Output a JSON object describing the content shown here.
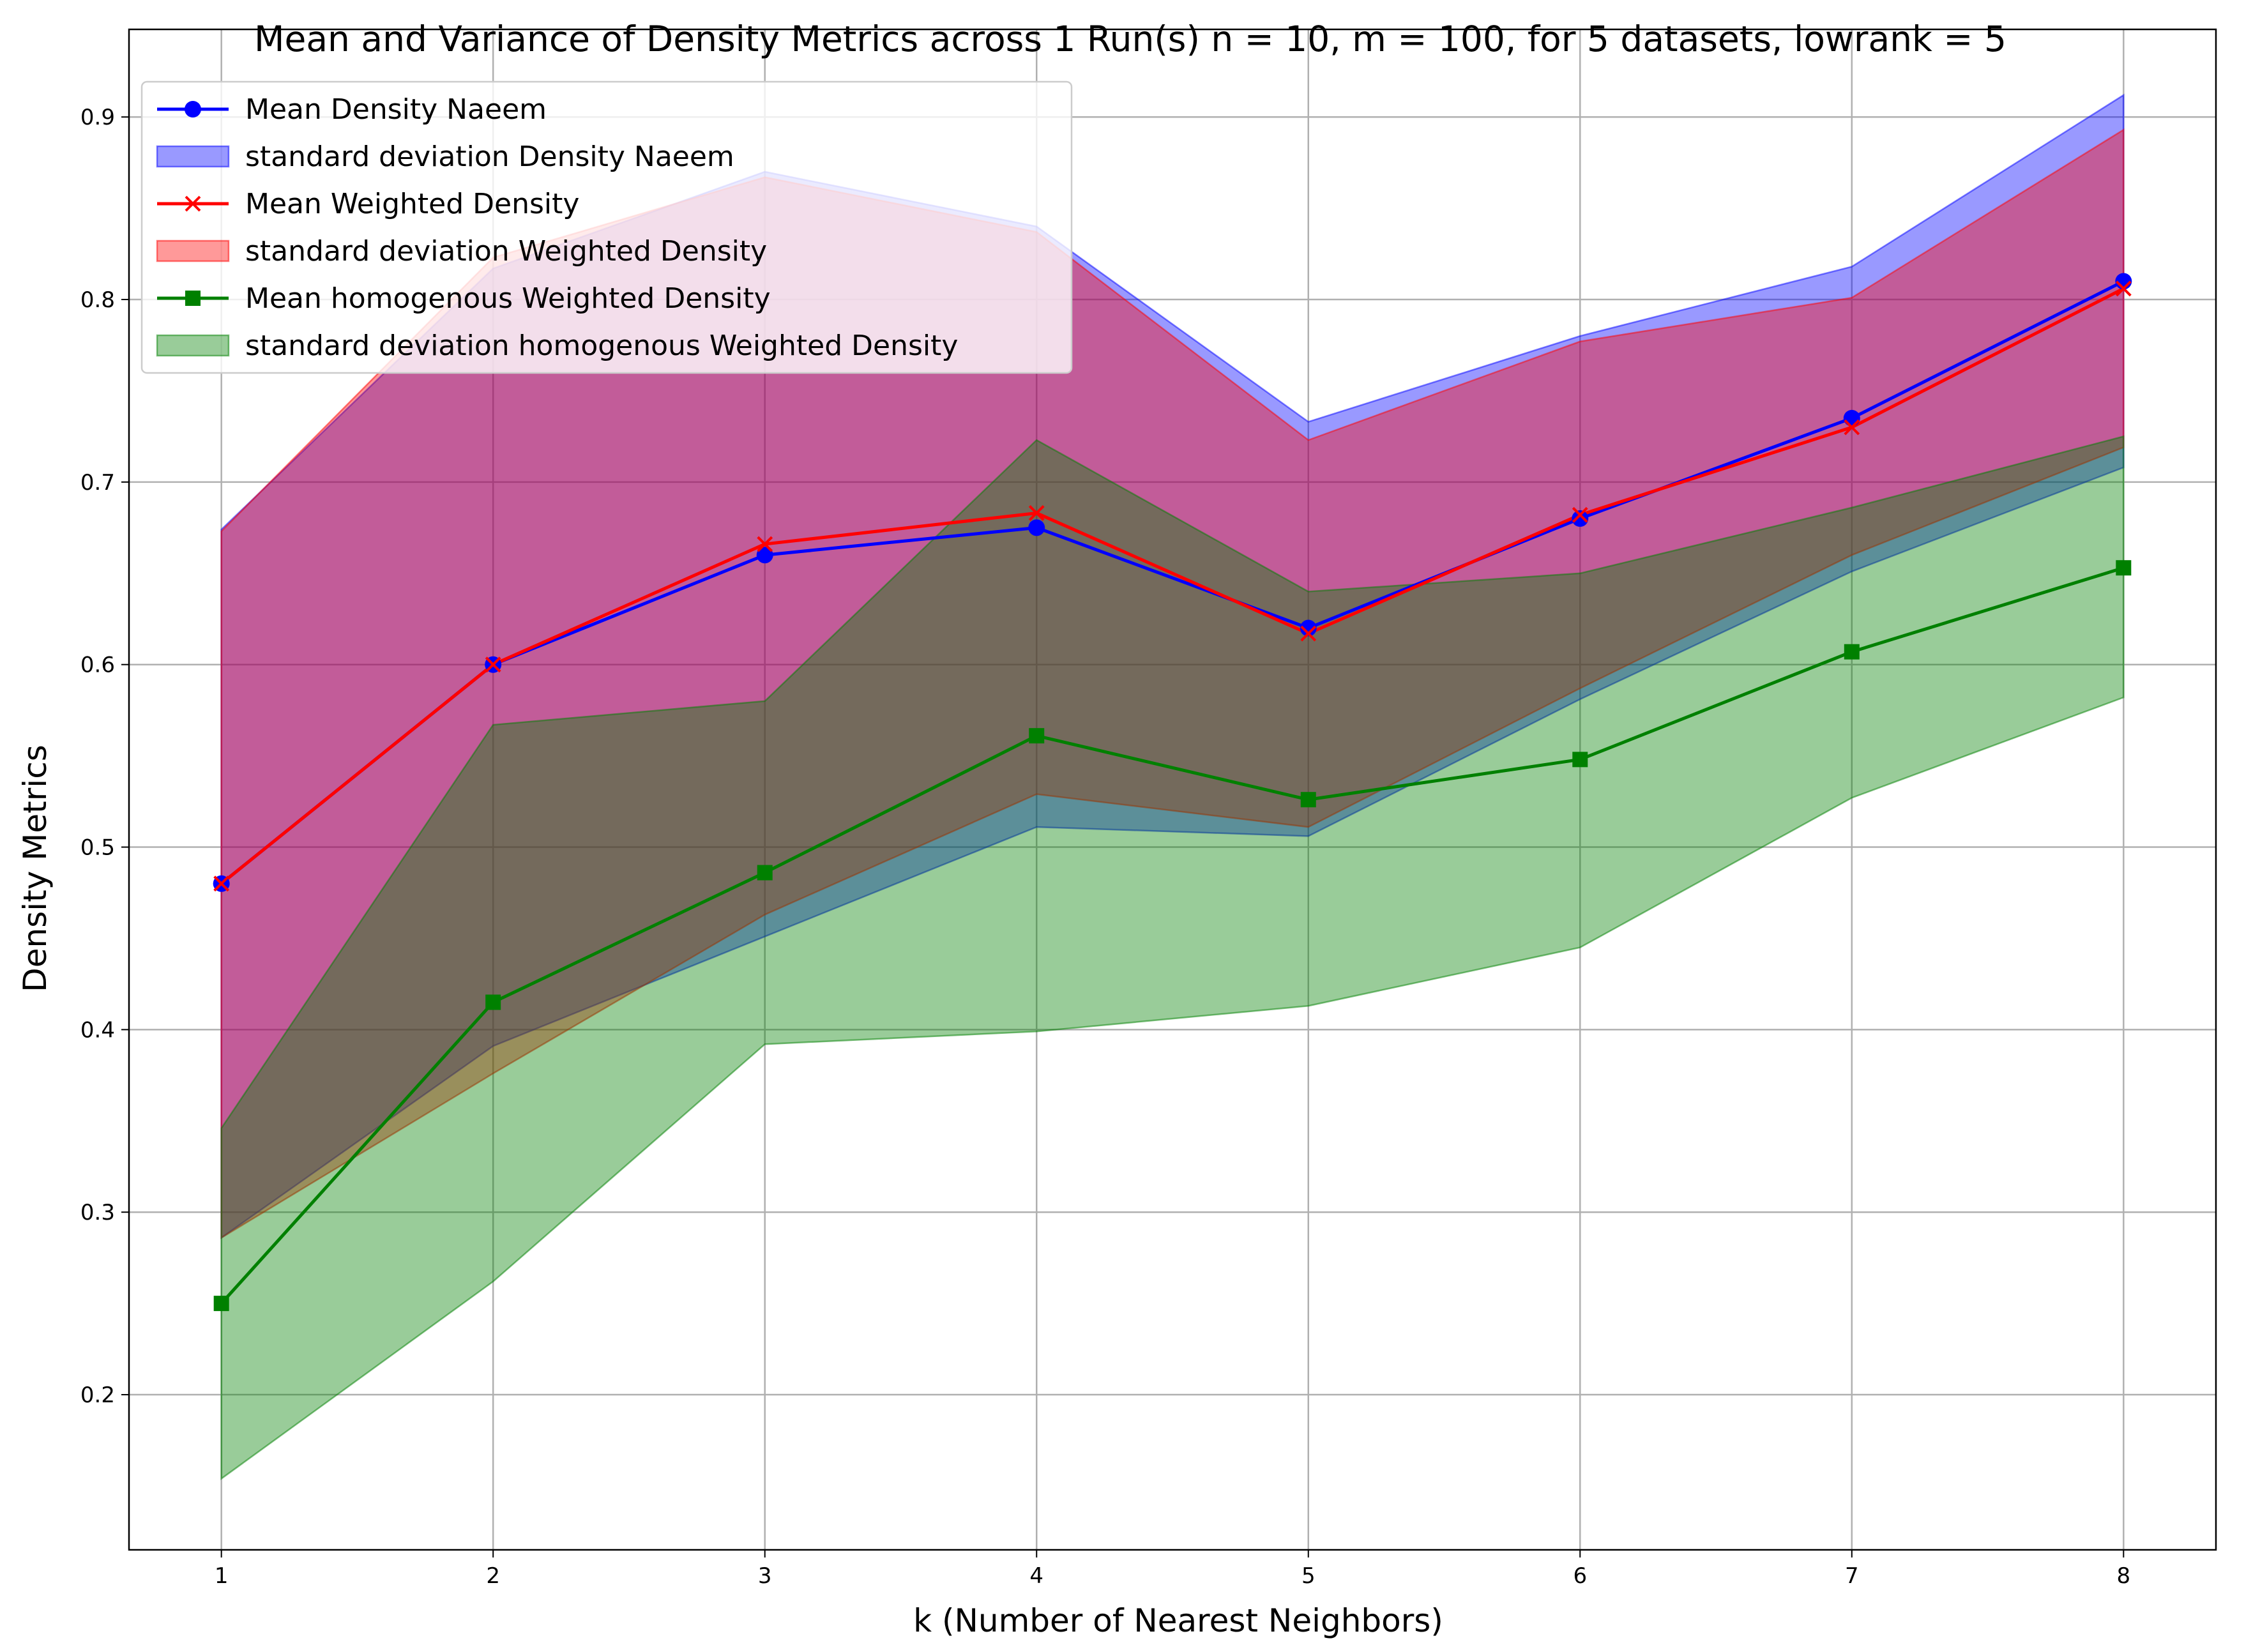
{
  "chart_data": {
    "type": "line",
    "title": "Mean and Variance of Density Metrics across 1 Run(s) n  = 10, m  = 100, for 5 datasets, lowrank = 5",
    "xlabel": "k (Number of Nearest Neighbors)",
    "ylabel": "Density Metrics",
    "xlim": [
      0.66,
      8.34
    ],
    "ylim": [
      0.115,
      0.948
    ],
    "xticks": [
      1,
      2,
      3,
      4,
      5,
      6,
      7,
      8
    ],
    "yticks": [
      0.2,
      0.3,
      0.4,
      0.5,
      0.6,
      0.7,
      0.8,
      0.9
    ],
    "grid": true,
    "legend_position": "top-left",
    "x": [
      1,
      2,
      3,
      4,
      5,
      6,
      7,
      8
    ],
    "series": [
      {
        "name": "Mean Density Naeem",
        "values": [
          0.48,
          0.6,
          0.66,
          0.675,
          0.62,
          0.68,
          0.735,
          0.81
        ],
        "color": "#0000ff",
        "marker": "circle"
      },
      {
        "name": "Mean Weighted Density",
        "values": [
          0.48,
          0.6,
          0.666,
          0.683,
          0.617,
          0.682,
          0.73,
          0.806
        ],
        "color": "#ff0000",
        "marker": "x"
      },
      {
        "name": "Mean homogenous Weighted Density",
        "values": [
          0.25,
          0.415,
          0.486,
          0.561,
          0.526,
          0.548,
          0.607,
          0.653
        ],
        "color": "#008000",
        "marker": "square"
      }
    ],
    "bands": [
      {
        "name": "standard deviation Density Naeem",
        "lower": [
          0.286,
          0.391,
          0.451,
          0.511,
          0.506,
          0.581,
          0.651,
          0.708
        ],
        "upper": [
          0.674,
          0.817,
          0.87,
          0.84,
          0.733,
          0.78,
          0.818,
          0.912
        ],
        "color": "#0000ff",
        "alpha": 0.4
      },
      {
        "name": "standard deviation Weighted Density",
        "lower": [
          0.286,
          0.376,
          0.463,
          0.529,
          0.511,
          0.587,
          0.66,
          0.719
        ],
        "upper": [
          0.673,
          0.823,
          0.867,
          0.837,
          0.723,
          0.777,
          0.801,
          0.893
        ],
        "color": "#ff0000",
        "alpha": 0.4
      },
      {
        "name": "standard deviation homogenous Weighted Density",
        "lower": [
          0.154,
          0.262,
          0.392,
          0.399,
          0.413,
          0.445,
          0.527,
          0.582
        ],
        "upper": [
          0.346,
          0.567,
          0.58,
          0.723,
          0.64,
          0.65,
          0.686,
          0.725
        ],
        "color": "#008000",
        "alpha": 0.4
      }
    ]
  }
}
